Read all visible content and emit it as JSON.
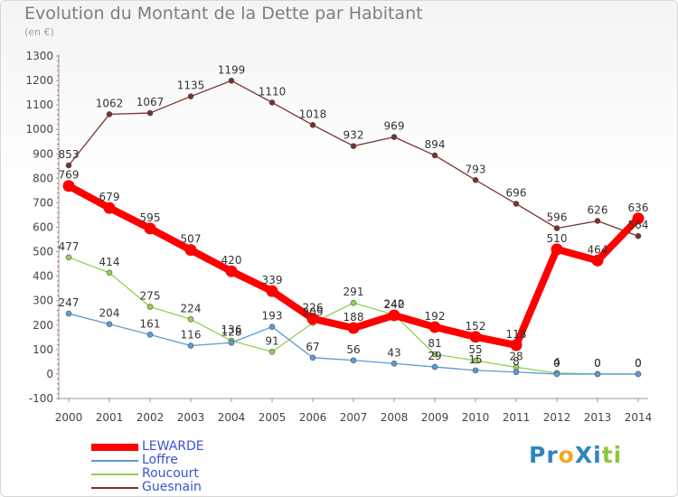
{
  "chart_data": {
    "type": "line",
    "title": "Evolution du Montant de la Dette par Habitant",
    "subtitle": "(en €)",
    "x": [
      "2000",
      "2001",
      "2002",
      "2003",
      "2004",
      "2005",
      "2006",
      "2007",
      "2008",
      "2009",
      "2010",
      "2011",
      "2012",
      "2013",
      "2014"
    ],
    "ylim": [
      -100,
      1300
    ],
    "yticks": [
      -100,
      0,
      100,
      200,
      300,
      400,
      500,
      600,
      700,
      800,
      900,
      1000,
      1100,
      1200,
      1300
    ],
    "grid": false,
    "legend_position": "bottom-left",
    "series": [
      {
        "name": "LEWARDE",
        "color": "#ff0000",
        "values": [
          769,
          679,
          595,
          507,
          420,
          339,
          226,
          188,
          240,
          192,
          152,
          118,
          510,
          464,
          636
        ]
      },
      {
        "name": "Loffre",
        "color": "#5b9bd5",
        "values": [
          247,
          204,
          161,
          116,
          128,
          193,
          67,
          56,
          43,
          29,
          15,
          8,
          0,
          0,
          0
        ]
      },
      {
        "name": "Roucourt",
        "color": "#92d050",
        "values": [
          477,
          414,
          275,
          224,
          136,
          91,
          209,
          291,
          242,
          81,
          55,
          28,
          4,
          0,
          0
        ]
      },
      {
        "name": "Guesnain",
        "color": "#7b3030",
        "values": [
          853,
          1062,
          1067,
          1135,
          1199,
          1110,
          1018,
          932,
          969,
          894,
          793,
          696,
          596,
          626,
          564
        ]
      }
    ]
  },
  "logo": {
    "text": "ProXiti",
    "letters": [
      "P",
      "r",
      "o",
      "X",
      "i",
      "t",
      "i"
    ],
    "colors": [
      "#2e86c1",
      "#2e86c1",
      "#f5a623",
      "#2e86c1",
      "#2e86c1",
      "#8cc63f",
      "#8cc63f"
    ]
  }
}
